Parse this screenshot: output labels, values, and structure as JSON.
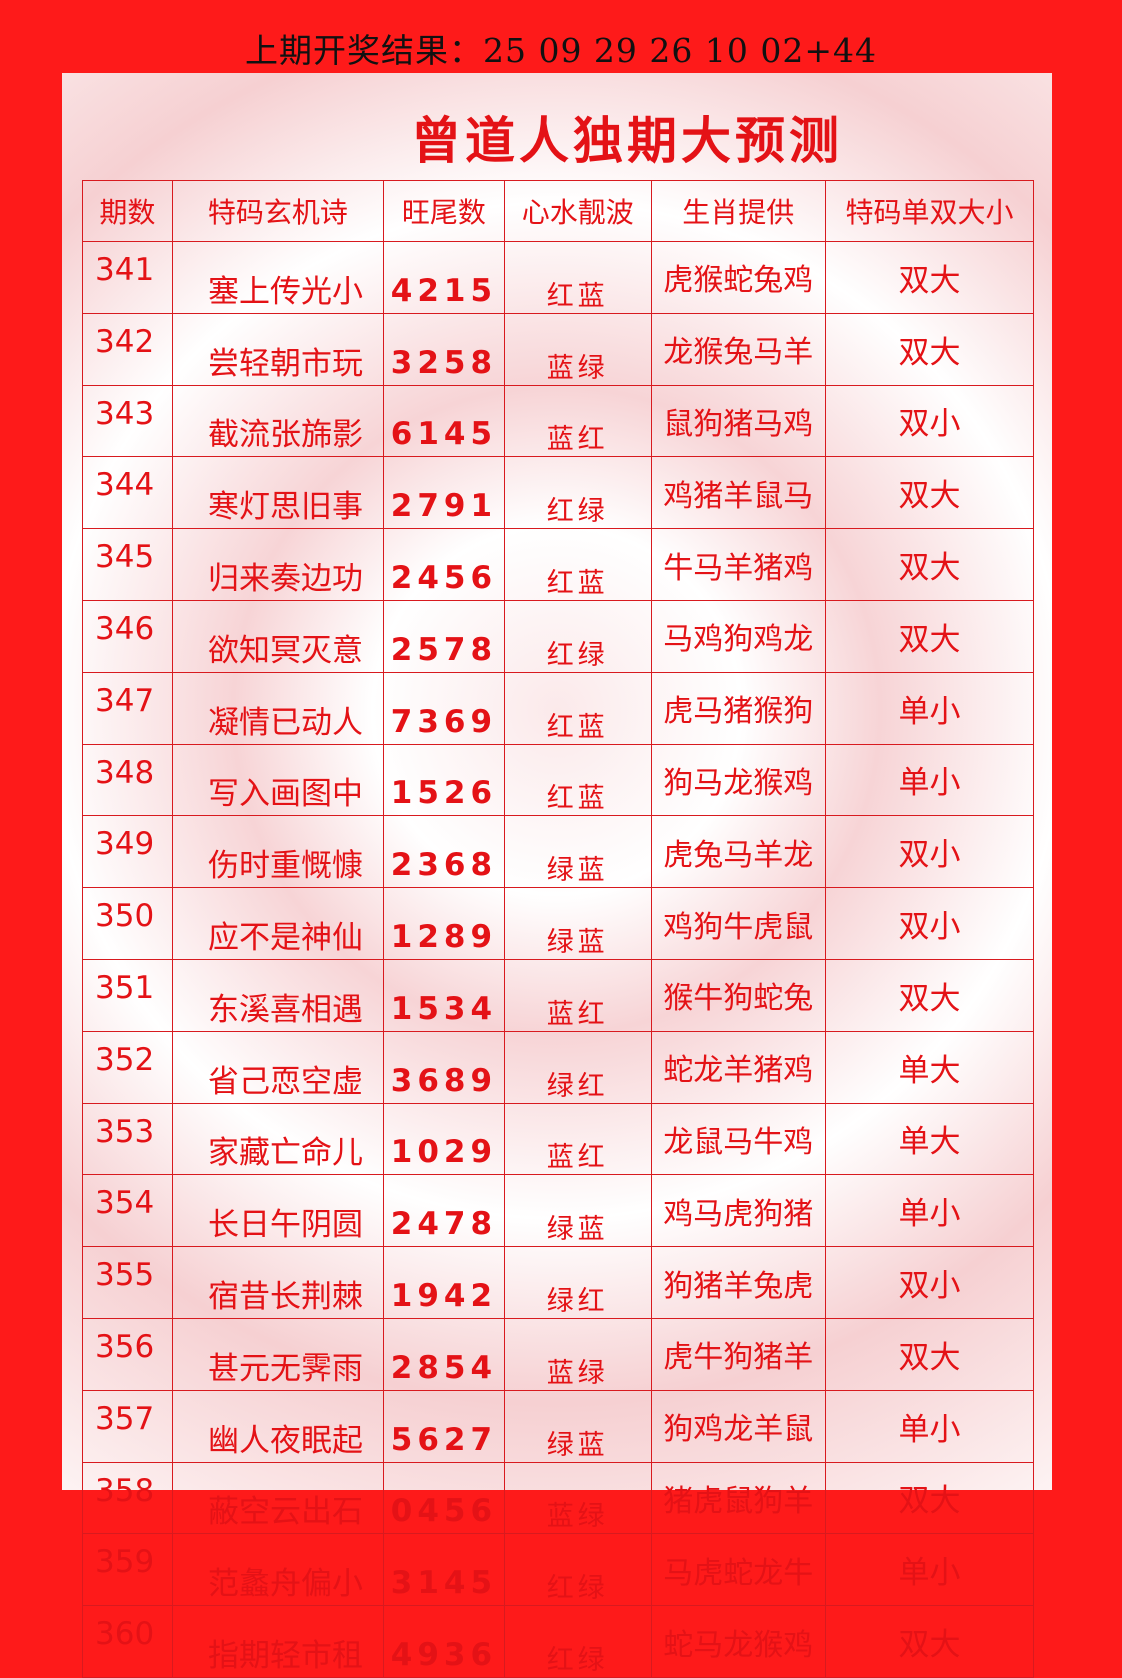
{
  "last_result": "上期开奖结果：25 09 29 26 10 02+44",
  "title": "曾道人独期大预测",
  "headers": [
    "期数",
    "特码玄机诗",
    "旺尾数",
    "心水靓波",
    "生肖提供",
    "特码单双大小"
  ],
  "rows": [
    [
      "341",
      "塞上传光小",
      "4215",
      "红蓝",
      "虎猴蛇兔鸡",
      "双大"
    ],
    [
      "342",
      "尝轻朝市玩",
      "3258",
      "蓝绿",
      "龙猴兔马羊",
      "双大"
    ],
    [
      "343",
      "截流张旆影",
      "6145",
      "蓝红",
      "鼠狗猪马鸡",
      "双小"
    ],
    [
      "344",
      "寒灯思旧事",
      "2791",
      "红绿",
      "鸡猪羊鼠马",
      "双大"
    ],
    [
      "345",
      "归来奏边功",
      "2456",
      "红蓝",
      "牛马羊猪鸡",
      "双大"
    ],
    [
      "346",
      "欲知冥灭意",
      "2578",
      "红绿",
      "马鸡狗鸡龙",
      "双大"
    ],
    [
      "347",
      "凝情已动人",
      "7369",
      "红蓝",
      "虎马猪猴狗",
      "单小"
    ],
    [
      "348",
      "写入画图中",
      "1526",
      "红蓝",
      "狗马龙猴鸡",
      "单小"
    ],
    [
      "349",
      "伤时重慨慷",
      "2368",
      "绿蓝",
      "虎兔马羊龙",
      "双小"
    ],
    [
      "350",
      "应不是神仙",
      "1289",
      "绿蓝",
      "鸡狗牛虎鼠",
      "双小"
    ],
    [
      "351",
      "东溪喜相遇",
      "1534",
      "蓝红",
      "猴牛狗蛇兔",
      "双大"
    ],
    [
      "352",
      "省己恧空虚",
      "3689",
      "绿红",
      "蛇龙羊猪鸡",
      "单大"
    ],
    [
      "353",
      "家藏亡命儿",
      "1029",
      "蓝红",
      "龙鼠马牛鸡",
      "单大"
    ],
    [
      "354",
      "长日午阴圆",
      "2478",
      "绿蓝",
      "鸡马虎狗猪",
      "单小"
    ],
    [
      "355",
      "宿昔长荆棘",
      "1942",
      "绿红",
      "狗猪羊兔虎",
      "双小"
    ],
    [
      "356",
      "甚元无霁雨",
      "2854",
      "蓝绿",
      "虎牛狗猪羊",
      "双大"
    ],
    [
      "357",
      "幽人夜眠起",
      "5627",
      "绿蓝",
      "狗鸡龙羊鼠",
      "单小"
    ],
    [
      "358",
      "蔽空云出石",
      "0456",
      "蓝绿",
      "猪虎鼠狗羊",
      "双大"
    ],
    [
      "359",
      "范蠡舟偏小",
      "3145",
      "红绿",
      "马虎蛇龙牛",
      "单小"
    ],
    [
      "360",
      "指期轻市租",
      "4936",
      "红绿",
      "蛇马龙猴鸡",
      "双大"
    ]
  ]
}
